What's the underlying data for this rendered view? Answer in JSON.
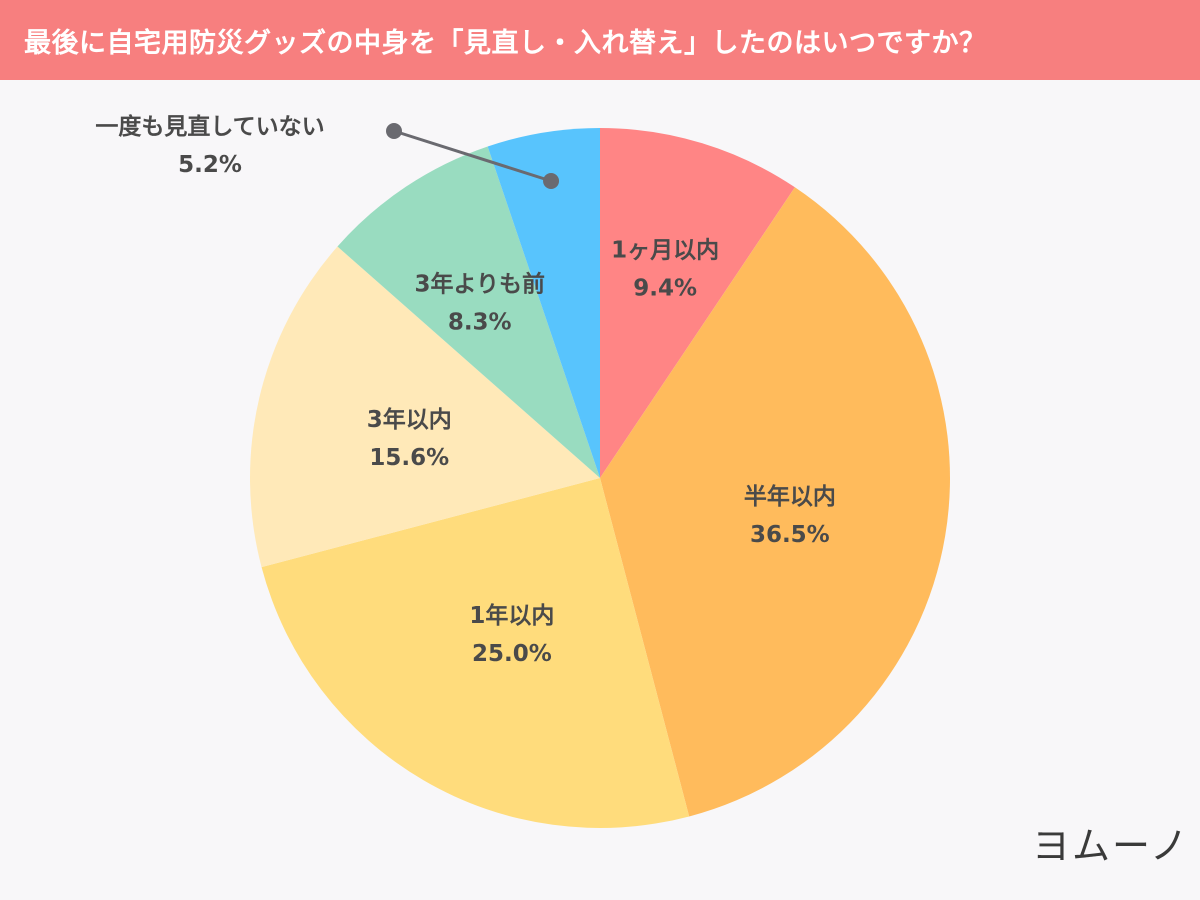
{
  "chart_data": {
    "type": "pie",
    "title": "最後に自宅用防災グッズの中身を「見直し・入れ替え」したのはいつですか？",
    "slices": [
      {
        "label": "1ヶ月以内",
        "value": 9.4,
        "value_label": "9.4%",
        "color": "#ff8585"
      },
      {
        "label": "半年以内",
        "value": 36.5,
        "value_label": "36.5%",
        "color": "#ffbb5c"
      },
      {
        "label": "1年以内",
        "value": 25.0,
        "value_label": "25.0%",
        "color": "#ffdc7c"
      },
      {
        "label": "3年以内",
        "value": 15.6,
        "value_label": "15.6%",
        "color": "#ffe9b8"
      },
      {
        "label": "3年よりも前",
        "value": 8.3,
        "value_label": "8.3%",
        "color": "#99dcc0"
      },
      {
        "label": "一度も見直していない",
        "value": 5.2,
        "value_label": "5.2%",
        "color": "#58c4fd"
      }
    ],
    "start": "12 o'clock",
    "direction": "clockwise"
  },
  "logo": {
    "text": "ヨムーノ"
  }
}
